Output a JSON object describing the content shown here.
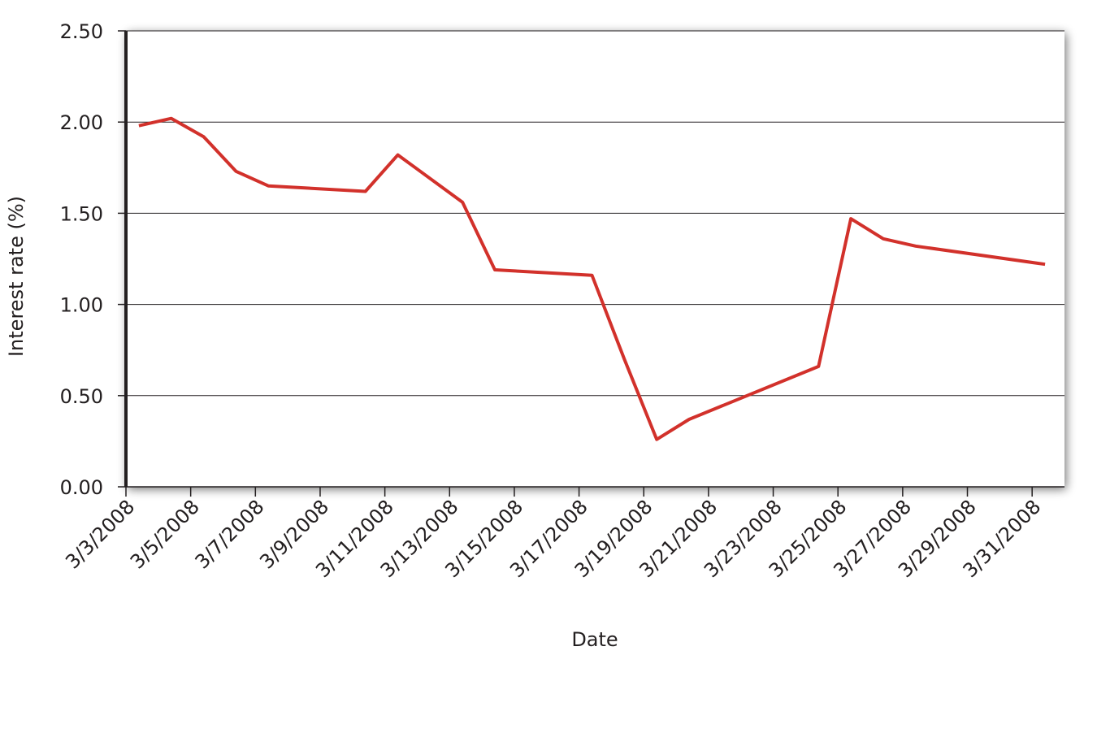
{
  "chart_data": {
    "type": "line",
    "x_label": "Date",
    "y_label": "Interest rate (%)",
    "x": [
      "3/3/2008",
      "3/4/2008",
      "3/5/2008",
      "3/6/2008",
      "3/7/2008",
      "3/10/2008",
      "3/11/2008",
      "3/13/2008",
      "3/14/2008",
      "3/17/2008",
      "3/18/2008",
      "3/19/2008",
      "3/20/2008",
      "3/24/2008",
      "3/25/2008",
      "3/26/2008",
      "3/27/2008",
      "3/31/2008"
    ],
    "values": [
      1.98,
      2.02,
      1.92,
      1.73,
      1.65,
      1.62,
      1.82,
      1.56,
      1.19,
      1.16,
      0.7,
      0.26,
      0.37,
      0.66,
      1.47,
      1.36,
      1.32,
      1.22
    ],
    "color": "#d2312b",
    "xticks": [
      "3/3/2008",
      "3/5/2008",
      "3/7/2008",
      "3/9/2008",
      "3/11/2008",
      "3/13/2008",
      "3/15/2008",
      "3/17/2008",
      "3/19/2008",
      "3/21/2008",
      "3/23/2008",
      "3/25/2008",
      "3/27/2008",
      "3/29/2008",
      "3/31/2008"
    ],
    "ylim": [
      0,
      2.5
    ],
    "yticks": [
      {
        "value": 0,
        "label": "0.00"
      },
      {
        "value": 0.5,
        "label": "0.50"
      },
      {
        "value": 1,
        "label": "1.00"
      },
      {
        "value": 1.5,
        "label": "1.50"
      },
      {
        "value": 2,
        "label": "2.00"
      },
      {
        "value": 2.5,
        "label": "2.50"
      }
    ],
    "grid": true
  }
}
